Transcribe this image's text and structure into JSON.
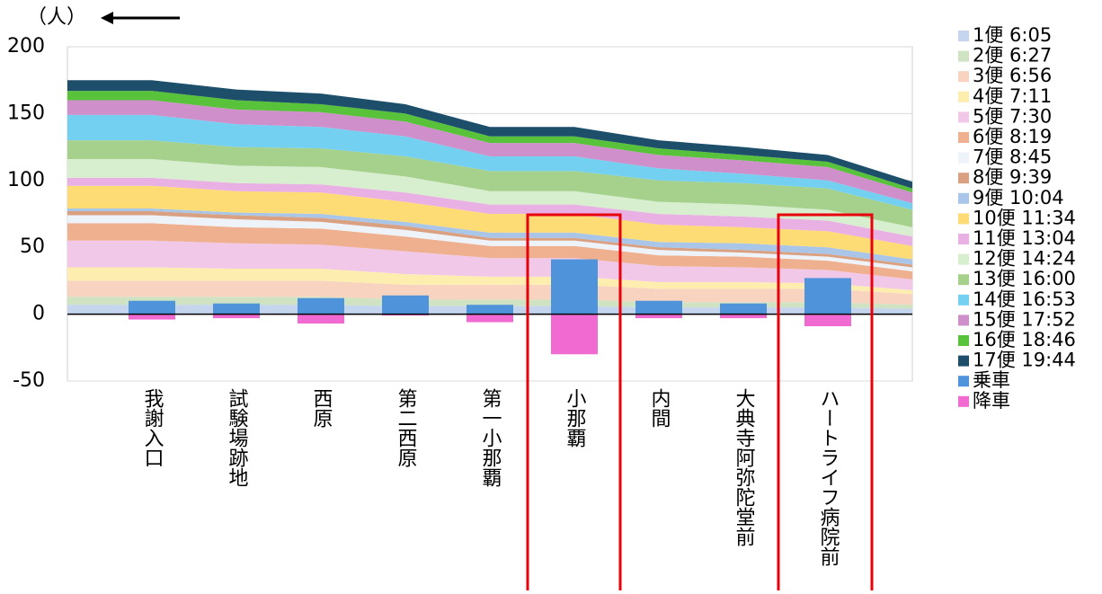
{
  "chart_data": {
    "type": "area",
    "y_unit": "（人）",
    "categories": [
      null,
      "我謝入口",
      "試験場跡地",
      "西原",
      "第二西原",
      "第一小那覇",
      "小那覇",
      "内間",
      "大典寺阿弥陀堂前",
      "ハートライフ病院前",
      null
    ],
    "ylim": [
      -50,
      200
    ],
    "yticks": [
      -50,
      0,
      50,
      100,
      150,
      200
    ],
    "grid": true,
    "legend": "right",
    "series": [
      {
        "name": "1便 6:05",
        "color": "#c5d5ee",
        "type": "area",
        "values": [
          7,
          7,
          7,
          7,
          6,
          6,
          6,
          5,
          5,
          5,
          4
        ]
      },
      {
        "name": "2便 6:27",
        "color": "#cfe3c2",
        "type": "area",
        "values": [
          6,
          6,
          6,
          6,
          5,
          5,
          5,
          4,
          4,
          4,
          3
        ]
      },
      {
        "name": "3便 6:56",
        "color": "#f8d3bf",
        "type": "area",
        "values": [
          12,
          12,
          12,
          12,
          11,
          11,
          11,
          10,
          10,
          10,
          8
        ]
      },
      {
        "name": "4便 7:11",
        "color": "#fdeeb0",
        "type": "area",
        "values": [
          10,
          10,
          9,
          9,
          8,
          6,
          6,
          5,
          5,
          4,
          3
        ]
      },
      {
        "name": "5便 7:30",
        "color": "#f2c8e8",
        "type": "area",
        "values": [
          20,
          20,
          19,
          18,
          17,
          14,
          14,
          12,
          11,
          10,
          8
        ]
      },
      {
        "name": "6便 8:19",
        "color": "#efb08f",
        "type": "area",
        "values": [
          13,
          13,
          12,
          12,
          11,
          9,
          9,
          8,
          8,
          7,
          6
        ]
      },
      {
        "name": "7便 8:45",
        "color": "#eef3fa",
        "type": "area",
        "values": [
          6,
          6,
          6,
          5,
          5,
          4,
          4,
          4,
          3,
          3,
          3
        ]
      },
      {
        "name": "8便 9:39",
        "color": "#d9a081",
        "type": "area",
        "values": [
          3,
          3,
          3,
          3,
          3,
          2,
          2,
          2,
          2,
          2,
          2
        ]
      },
      {
        "name": "9便 10:04",
        "color": "#a9c6e8",
        "type": "area",
        "values": [
          2,
          2,
          2,
          3,
          3,
          4,
          4,
          4,
          5,
          5,
          4
        ]
      },
      {
        "name": "10便 11:34",
        "color": "#fddc75",
        "type": "area",
        "values": [
          17,
          17,
          16,
          16,
          15,
          14,
          14,
          13,
          12,
          12,
          10
        ]
      },
      {
        "name": "11便 13:04",
        "color": "#e9b0e3",
        "type": "area",
        "values": [
          6,
          6,
          6,
          6,
          7,
          7,
          7,
          8,
          8,
          8,
          7
        ]
      },
      {
        "name": "12便 14:24",
        "color": "#d7efcf",
        "type": "area",
        "values": [
          14,
          14,
          13,
          13,
          12,
          10,
          10,
          9,
          9,
          8,
          7
        ]
      },
      {
        "name": "13便 16:00",
        "color": "#a6d18d",
        "type": "area",
        "values": [
          14,
          14,
          14,
          14,
          15,
          15,
          15,
          16,
          16,
          16,
          13
        ]
      },
      {
        "name": "14便 16:53",
        "color": "#74d0f0",
        "type": "area",
        "values": [
          19,
          19,
          17,
          16,
          15,
          11,
          11,
          9,
          7,
          6,
          5
        ]
      },
      {
        "name": "15便 17:52",
        "color": "#cf8fcb",
        "type": "area",
        "values": [
          11,
          11,
          11,
          11,
          11,
          10,
          10,
          10,
          10,
          10,
          8
        ]
      },
      {
        "name": "16便 18:46",
        "color": "#58c23a",
        "type": "area",
        "values": [
          7,
          7,
          7,
          6,
          6,
          5,
          5,
          5,
          4,
          4,
          3
        ]
      },
      {
        "name": "17便 19:44",
        "color": "#1d4f6b",
        "type": "area",
        "values": [
          8,
          8,
          8,
          8,
          7,
          7,
          7,
          6,
          6,
          5,
          5
        ]
      },
      {
        "name": "乗車",
        "color": "#4f94db",
        "type": "bar",
        "values": [
          null,
          10,
          8,
          12,
          14,
          7,
          41,
          10,
          8,
          27,
          null
        ]
      },
      {
        "name": "降車",
        "color": "#f06ad2",
        "type": "bar",
        "values": [
          null,
          -4,
          -3,
          -7,
          -1,
          -6,
          -30,
          -3,
          -3,
          -9,
          null
        ]
      }
    ]
  }
}
